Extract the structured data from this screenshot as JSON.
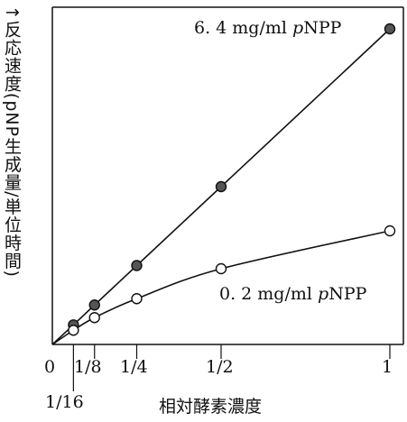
{
  "chart_data": {
    "type": "line",
    "xlabel": "相対酵素濃度",
    "ylabel": "↑反応速度(pNP生成量/単位時間)",
    "xlim": [
      0,
      1
    ],
    "ylim": [
      0,
      1
    ],
    "x_ticks": [
      {
        "value": 0,
        "label": "0"
      },
      {
        "value": 0.0625,
        "label": "1/16"
      },
      {
        "value": 0.125,
        "label": "1/8"
      },
      {
        "value": 0.25,
        "label": "1/4"
      },
      {
        "value": 0.5,
        "label": "1/2"
      },
      {
        "value": 1,
        "label": "1"
      }
    ],
    "grid": false,
    "series": [
      {
        "name": "6.4 mg/ml pNPP",
        "label_parts": {
          "value": "6. 4 mg/ml ",
          "p": "p",
          "rest": "NPP"
        },
        "marker": "filled-circle",
        "color": "#555555",
        "x": [
          0.0625,
          0.125,
          0.25,
          0.5,
          1
        ],
        "y": [
          0.062,
          0.125,
          0.25,
          0.5,
          1.0
        ]
      },
      {
        "name": "0.2 mg/ml pNPP",
        "label_parts": {
          "value": "0. 2 mg/ml ",
          "p": "p",
          "rest": "NPP"
        },
        "marker": "open-circle",
        "color": "#111111",
        "x": [
          0.0625,
          0.125,
          0.25,
          0.5,
          1
        ],
        "y": [
          0.045,
          0.085,
          0.145,
          0.24,
          0.36
        ]
      }
    ]
  }
}
